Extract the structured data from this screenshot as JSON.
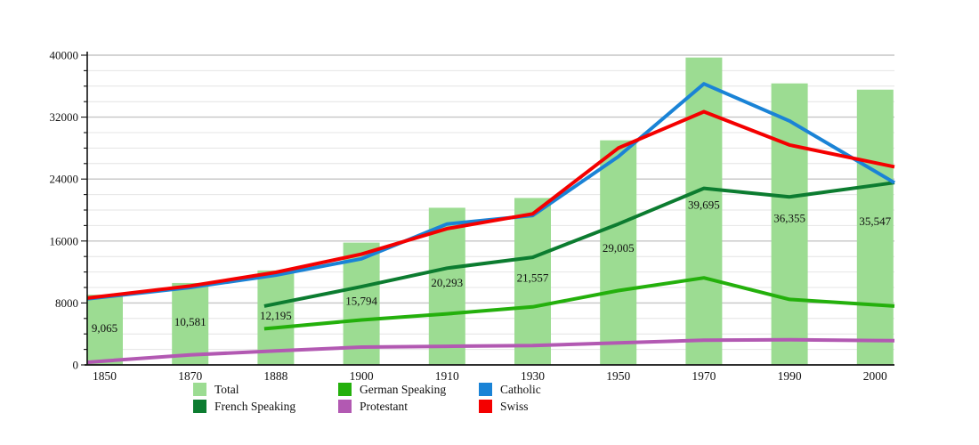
{
  "chart_data": {
    "type": "bar+line",
    "title": "",
    "categories": [
      "1850",
      "1870",
      "1888",
      "1900",
      "1910",
      "1930",
      "1950",
      "1970",
      "1990",
      "2000"
    ],
    "y_axis": {
      "min": 0,
      "max": 40000,
      "major_ticks": [
        0,
        8000,
        16000,
        24000,
        32000,
        40000
      ],
      "tick_labels": [
        "0",
        "8000",
        "16000",
        "24000",
        "32000",
        "40000"
      ],
      "minor_step": 2000,
      "grid": true
    },
    "bars": {
      "name": "Total",
      "color": "#9cdc92",
      "values": [
        9065,
        10581,
        12195,
        15794,
        20293,
        21557,
        29005,
        39695,
        36355,
        35547
      ],
      "data_labels": [
        "9,065",
        "10,581",
        "12,195",
        "15,794",
        "20,293",
        "21,557",
        "29,005",
        "39,695",
        "36,355",
        "35,547"
      ]
    },
    "lines": [
      {
        "name": "Protestant",
        "color": "#b259b2",
        "values": [
          500,
          1300,
          1800,
          2300,
          2400,
          2500,
          2850,
          3200,
          3250,
          3150
        ]
      },
      {
        "name": "German Speaking",
        "color": "#24b00c",
        "values": [
          null,
          null,
          4800,
          5800,
          6600,
          7500,
          9600,
          11240,
          8460,
          7760
        ]
      },
      {
        "name": "French Speaking",
        "color": "#0c7c30",
        "values": [
          null,
          null,
          7900,
          10100,
          12500,
          13900,
          18200,
          22800,
          21700,
          23200
        ]
      },
      {
        "name": "Catholic",
        "color": "#1a83d6",
        "values": [
          8780,
          10000,
          11600,
          13700,
          18200,
          19300,
          26900,
          36300,
          31500,
          25000
        ]
      },
      {
        "name": "Swiss",
        "color": "#f40000",
        "values": [
          8900,
          10200,
          11950,
          14300,
          17600,
          19500,
          28000,
          32700,
          28400,
          26100
        ]
      }
    ],
    "legend": {
      "position": "bottom",
      "entries": [
        {
          "label": "Total",
          "color": "#9cdc92"
        },
        {
          "label": "French Speaking",
          "color": "#0c7c30"
        },
        {
          "label": "German Speaking",
          "color": "#24b00c"
        },
        {
          "label": "Protestant",
          "color": "#b259b2"
        },
        {
          "label": "Catholic",
          "color": "#1a83d6"
        },
        {
          "label": "Swiss",
          "color": "#f40000"
        }
      ]
    }
  }
}
